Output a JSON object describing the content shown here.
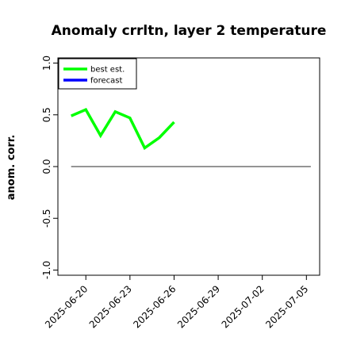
{
  "chart_data": {
    "type": "line",
    "title": "Anomaly crrltn, layer 2 temperature",
    "ylabel": "anom. corr.",
    "xlabel": "",
    "ylim": [
      -1.05,
      1.05
    ],
    "yticks": [
      "-1.0",
      "-0.5",
      "0.0",
      "0.5",
      "1.0"
    ],
    "ytick_values": [
      -1.0,
      -0.5,
      0.0,
      0.5,
      1.0
    ],
    "xlim_days": [
      -1.9,
      15.9
    ],
    "xticks": [
      {
        "label": "2025-06-20",
        "day": 0,
        "color": "#000000"
      },
      {
        "label": "2025-06-23",
        "day": 3,
        "color": "#000000"
      },
      {
        "label": "2025-06-26",
        "day": 6,
        "color": "#228B22"
      },
      {
        "label": "2025-06-29",
        "day": 9,
        "color": "#000000"
      },
      {
        "label": "2025-07-02",
        "day": 12,
        "color": "#000000"
      },
      {
        "label": "2025-07-05",
        "day": 15,
        "color": "#000000"
      }
    ],
    "reference_line": {
      "y": 0.0,
      "color": "#555555"
    },
    "legend": {
      "position": "top-left",
      "entries": [
        {
          "name": "best est.",
          "color": "#00ff00"
        },
        {
          "name": "forecast",
          "color": "#0000ff"
        }
      ]
    },
    "series": [
      {
        "name": "best est.",
        "color": "#00ff00",
        "x": [
          "2025-06-19",
          "2025-06-20",
          "2025-06-21",
          "2025-06-22",
          "2025-06-23",
          "2025-06-24",
          "2025-06-25",
          "2025-06-26"
        ],
        "x_days": [
          -1,
          0,
          1,
          2,
          3,
          4,
          5,
          6
        ],
        "y": [
          0.49,
          0.55,
          0.3,
          0.53,
          0.47,
          0.18,
          0.28,
          0.43
        ]
      }
    ]
  }
}
